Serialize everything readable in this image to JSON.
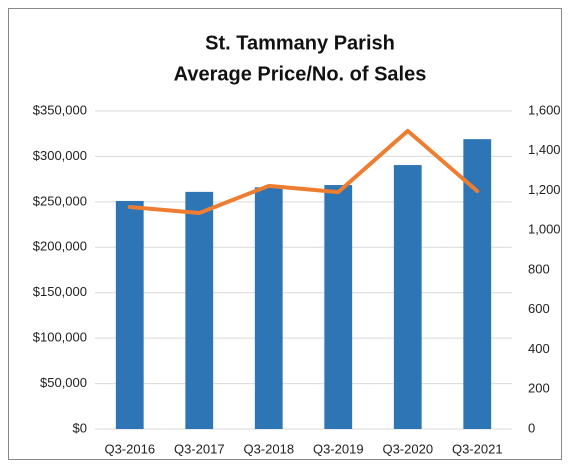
{
  "chart_data": {
    "type": "bar",
    "title": [
      "St. Tammany Parish",
      "Average Price/No. of Sales"
    ],
    "categories": [
      "Q3-2016",
      "Q3-2017",
      "Q3-2018",
      "Q3-2019",
      "Q3-2020",
      "Q3-2021"
    ],
    "series": [
      {
        "type": "bar",
        "color": "#2e75b6",
        "values": [
          251000,
          261000,
          266000,
          268500,
          290500,
          319000
        ]
      },
      {
        "type": "line",
        "color": "#ed7d31",
        "axis": "y2",
        "values": [
          1117,
          1087,
          1223,
          1192,
          1500,
          1197
        ]
      }
    ],
    "ylim": [
      0,
      350000
    ],
    "yticks": [
      {
        "value": 0,
        "label": "$0"
      },
      {
        "value": 50000,
        "label": "$50,000"
      },
      {
        "value": 100000,
        "label": "$100,000"
      },
      {
        "value": 150000,
        "label": "$150,000"
      },
      {
        "value": 200000,
        "label": "$200,000"
      },
      {
        "value": 250000,
        "label": "$250,000"
      },
      {
        "value": 300000,
        "label": "$300,000"
      },
      {
        "value": 350000,
        "label": "$350,000"
      }
    ],
    "y2lim": [
      0,
      1600
    ],
    "y2ticks": [
      0,
      200,
      400,
      600,
      800,
      {
        "value": 1000,
        "label": "1,000"
      },
      {
        "value": 1200,
        "label": "1,200"
      },
      {
        "value": 1400,
        "label": "1,400"
      },
      {
        "value": 1600,
        "label": "1,600"
      }
    ],
    "grid": true
  }
}
